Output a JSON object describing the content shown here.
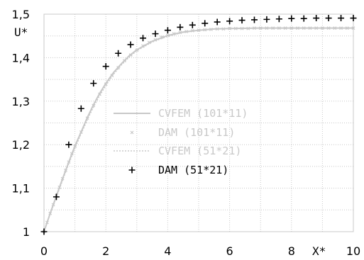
{
  "chart_data": {
    "type": "line",
    "xlabel": "X*",
    "ylabel": "U*",
    "xlim": [
      0,
      10
    ],
    "ylim": [
      1,
      1.5
    ],
    "x_ticks": [
      "0",
      "2",
      "4",
      "6",
      "8",
      "10"
    ],
    "y_ticks": [
      "1",
      "1,1",
      "1,2",
      "1,3",
      "1,4",
      "1,5"
    ],
    "grid": true,
    "legend_position": "center",
    "series": [
      {
        "name": "CVFEM (101*11)",
        "style": "solid",
        "color": "#c8c8c8",
        "x": [
          0,
          0.2,
          0.4,
          0.6,
          0.8,
          1,
          1.2,
          1.4,
          1.6,
          1.8,
          2,
          2.25,
          2.5,
          2.75,
          3,
          3.5,
          4,
          4.5,
          5,
          5.5,
          6,
          7,
          8,
          9,
          10
        ],
        "y": [
          1,
          1.042,
          1.082,
          1.122,
          1.16,
          1.197,
          1.229,
          1.262,
          1.292,
          1.318,
          1.341,
          1.366,
          1.386,
          1.404,
          1.418,
          1.438,
          1.451,
          1.459,
          1.463,
          1.466,
          1.467,
          1.468,
          1.468,
          1.468,
          1.468
        ]
      },
      {
        "name": "DAM (101*11)",
        "style": "marker-x",
        "color": "#c8c8c8",
        "x": [
          0,
          0.1,
          0.2,
          0.3,
          0.4,
          0.5,
          0.6,
          0.7,
          0.8,
          0.9,
          1,
          1.2,
          1.4,
          1.6,
          1.8,
          2,
          2.2,
          2.4,
          2.6,
          2.8,
          3,
          3.2,
          3.4,
          3.6,
          3.8,
          4,
          4.2,
          4.4,
          4.6,
          4.8,
          5,
          5.2,
          5.4,
          5.6,
          5.8,
          6,
          6.2,
          6.4,
          6.6,
          6.8,
          7,
          7.2,
          7.4,
          7.6,
          7.8,
          8,
          8.2,
          8.4,
          8.6,
          8.8,
          9,
          9.2,
          9.4,
          9.6,
          9.8,
          10
        ],
        "y": [
          1,
          1.021,
          1.042,
          1.062,
          1.082,
          1.102,
          1.122,
          1.141,
          1.16,
          1.179,
          1.196,
          1.229,
          1.261,
          1.29,
          1.316,
          1.339,
          1.359,
          1.377,
          1.393,
          1.406,
          1.417,
          1.427,
          1.435,
          1.441,
          1.447,
          1.451,
          1.455,
          1.458,
          1.46,
          1.462,
          1.463,
          1.464,
          1.465,
          1.466,
          1.466,
          1.467,
          1.467,
          1.467,
          1.467,
          1.468,
          1.468,
          1.468,
          1.468,
          1.468,
          1.468,
          1.468,
          1.468,
          1.468,
          1.468,
          1.468,
          1.468,
          1.468,
          1.468,
          1.468,
          1.468,
          1.468
        ]
      },
      {
        "name": "CVFEM (51*21)",
        "style": "dotted",
        "color": "#c8c8c8",
        "x": [
          0,
          0.2,
          0.4,
          0.6,
          0.8,
          1,
          1.2,
          1.4,
          1.6,
          1.8,
          2,
          2.25,
          2.5,
          2.75,
          3,
          3.5,
          4,
          4.5,
          5,
          5.5,
          6,
          7,
          8,
          9,
          10
        ],
        "y": [
          1,
          1.04,
          1.079,
          1.118,
          1.156,
          1.192,
          1.225,
          1.257,
          1.287,
          1.313,
          1.336,
          1.362,
          1.383,
          1.401,
          1.416,
          1.436,
          1.449,
          1.458,
          1.463,
          1.466,
          1.467,
          1.468,
          1.468,
          1.468,
          1.468
        ]
      },
      {
        "name": "DAM (51*21)",
        "style": "marker-plus",
        "color": "#000000",
        "x": [
          0,
          0.4,
          0.8,
          1.2,
          1.6,
          2,
          2.4,
          2.8,
          3.2,
          3.6,
          4,
          4.4,
          4.8,
          5.2,
          5.6,
          6,
          6.4,
          6.8,
          7.2,
          7.6,
          8,
          8.4,
          8.8,
          9.2,
          9.6,
          10
        ],
        "y": [
          1,
          1.08,
          1.2,
          1.283,
          1.341,
          1.38,
          1.41,
          1.43,
          1.445,
          1.455,
          1.463,
          1.47,
          1.475,
          1.479,
          1.482,
          1.484,
          1.486,
          1.487,
          1.488,
          1.489,
          1.49,
          1.49,
          1.491,
          1.491,
          1.491,
          1.491
        ]
      }
    ]
  }
}
